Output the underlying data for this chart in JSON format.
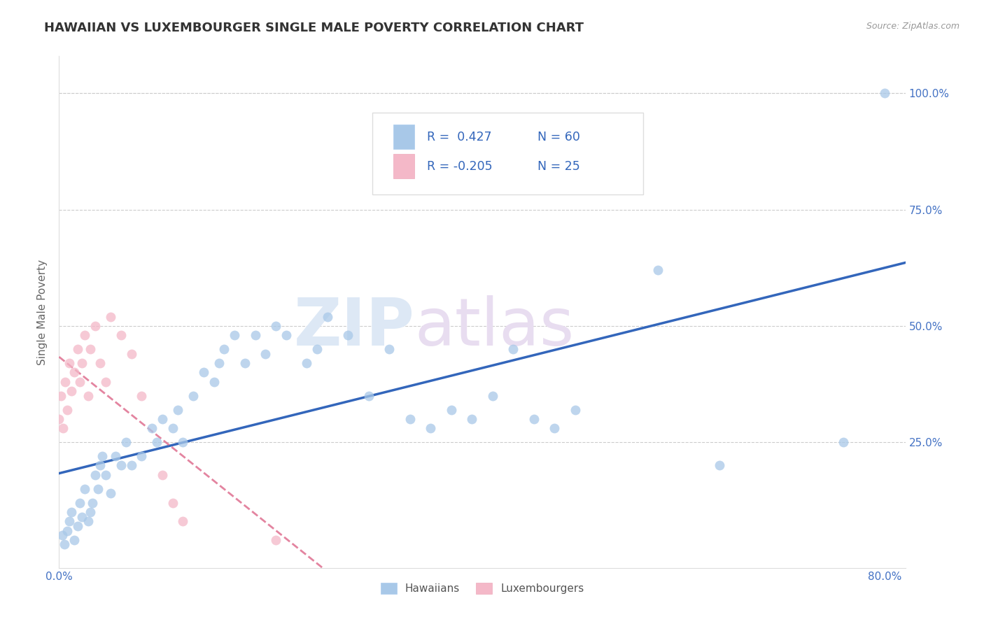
{
  "title": "HAWAIIAN VS LUXEMBOURGER SINGLE MALE POVERTY CORRELATION CHART",
  "source_text": "Source: ZipAtlas.com",
  "ylabel": "Single Male Poverty",
  "watermark_zip": "ZIP",
  "watermark_atlas": "atlas",
  "xlim": [
    0.0,
    0.82
  ],
  "ylim": [
    -0.02,
    1.08
  ],
  "xticks": [
    0.0,
    0.2,
    0.4,
    0.6,
    0.8
  ],
  "xticklabels": [
    "0.0%",
    "",
    "",
    "",
    "80.0%"
  ],
  "yticks": [
    0.0,
    0.25,
    0.5,
    0.75,
    1.0
  ],
  "yticklabels_right": [
    "",
    "25.0%",
    "50.0%",
    "75.0%",
    "100.0%"
  ],
  "title_color": "#333333",
  "title_fontsize": 13,
  "tick_color": "#4472c4",
  "background_color": "#ffffff",
  "grid_color": "#cccccc",
  "hawaiian_color": "#a8c8e8",
  "luxembourger_color": "#f4b8c8",
  "hawaiian_line_color": "#3366bb",
  "luxembourger_line_color": "#dd6688",
  "legend_R_hawaiian": "0.427",
  "legend_N_hawaiian": "60",
  "legend_R_luxembourger": "-0.205",
  "legend_N_luxembourger": "25",
  "hawaiian_x": [
    0.003,
    0.005,
    0.008,
    0.01,
    0.012,
    0.015,
    0.018,
    0.02,
    0.022,
    0.025,
    0.028,
    0.03,
    0.032,
    0.035,
    0.038,
    0.04,
    0.042,
    0.045,
    0.05,
    0.055,
    0.06,
    0.065,
    0.07,
    0.08,
    0.09,
    0.095,
    0.1,
    0.11,
    0.115,
    0.12,
    0.13,
    0.14,
    0.15,
    0.155,
    0.16,
    0.17,
    0.18,
    0.19,
    0.2,
    0.21,
    0.22,
    0.24,
    0.25,
    0.26,
    0.28,
    0.3,
    0.32,
    0.34,
    0.36,
    0.38,
    0.4,
    0.42,
    0.44,
    0.46,
    0.48,
    0.5,
    0.58,
    0.64,
    0.76,
    0.8
  ],
  "hawaiian_y": [
    0.05,
    0.03,
    0.06,
    0.08,
    0.1,
    0.04,
    0.07,
    0.12,
    0.09,
    0.15,
    0.08,
    0.1,
    0.12,
    0.18,
    0.15,
    0.2,
    0.22,
    0.18,
    0.14,
    0.22,
    0.2,
    0.25,
    0.2,
    0.22,
    0.28,
    0.25,
    0.3,
    0.28,
    0.32,
    0.25,
    0.35,
    0.4,
    0.38,
    0.42,
    0.45,
    0.48,
    0.42,
    0.48,
    0.44,
    0.5,
    0.48,
    0.42,
    0.45,
    0.52,
    0.48,
    0.35,
    0.45,
    0.3,
    0.28,
    0.32,
    0.3,
    0.35,
    0.45,
    0.3,
    0.28,
    0.32,
    0.62,
    0.2,
    0.25,
    1.0
  ],
  "luxembourger_x": [
    0.0,
    0.002,
    0.004,
    0.006,
    0.008,
    0.01,
    0.012,
    0.015,
    0.018,
    0.02,
    0.022,
    0.025,
    0.028,
    0.03,
    0.035,
    0.04,
    0.045,
    0.05,
    0.06,
    0.07,
    0.08,
    0.1,
    0.11,
    0.12,
    0.21
  ],
  "luxembourger_y": [
    0.3,
    0.35,
    0.28,
    0.38,
    0.32,
    0.42,
    0.36,
    0.4,
    0.45,
    0.38,
    0.42,
    0.48,
    0.35,
    0.45,
    0.5,
    0.42,
    0.38,
    0.52,
    0.48,
    0.44,
    0.35,
    0.18,
    0.12,
    0.08,
    0.04
  ]
}
